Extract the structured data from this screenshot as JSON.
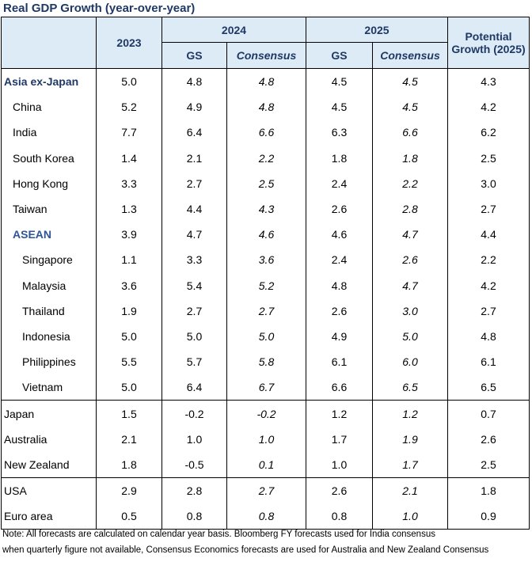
{
  "title": "Real GDP Growth (year-over-year)",
  "headers": {
    "y2023": "2023",
    "y2024": "2024",
    "y2025": "2025",
    "gs": "GS",
    "consensus": "Consensus",
    "potential": "Potential Growth (2025)"
  },
  "rows": [
    {
      "name": "Asia ex-Japan",
      "v2023": "5.0",
      "gs2024": "4.8",
      "c2024": "4.8",
      "gs2025": "4.5",
      "c2025": "4.5",
      "pot": "4.3"
    },
    {
      "name": "China",
      "v2023": "5.2",
      "gs2024": "4.9",
      "c2024": "4.8",
      "gs2025": "4.5",
      "c2025": "4.5",
      "pot": "4.2"
    },
    {
      "name": "India",
      "v2023": "7.7",
      "gs2024": "6.4",
      "c2024": "6.6",
      "gs2025": "6.3",
      "c2025": "6.6",
      "pot": "6.2"
    },
    {
      "name": "South Korea",
      "v2023": "1.4",
      "gs2024": "2.1",
      "c2024": "2.2",
      "gs2025": "1.8",
      "c2025": "1.8",
      "pot": "2.5"
    },
    {
      "name": "Hong Kong",
      "v2023": "3.3",
      "gs2024": "2.7",
      "c2024": "2.5",
      "gs2025": "2.4",
      "c2025": "2.2",
      "pot": "3.0"
    },
    {
      "name": "Taiwan",
      "v2023": "1.3",
      "gs2024": "4.4",
      "c2024": "4.3",
      "gs2025": "2.6",
      "c2025": "2.8",
      "pot": "2.7"
    },
    {
      "name": "ASEAN",
      "v2023": "3.9",
      "gs2024": "4.7",
      "c2024": "4.6",
      "gs2025": "4.6",
      "c2025": "4.7",
      "pot": "4.4"
    },
    {
      "name": "Singapore",
      "v2023": "1.1",
      "gs2024": "3.3",
      "c2024": "3.6",
      "gs2025": "2.4",
      "c2025": "2.6",
      "pot": "2.2"
    },
    {
      "name": "Malaysia",
      "v2023": "3.6",
      "gs2024": "5.4",
      "c2024": "5.2",
      "gs2025": "4.8",
      "c2025": "4.7",
      "pot": "4.2"
    },
    {
      "name": "Thailand",
      "v2023": "1.9",
      "gs2024": "2.7",
      "c2024": "2.7",
      "gs2025": "2.6",
      "c2025": "3.0",
      "pot": "2.7"
    },
    {
      "name": "Indonesia",
      "v2023": "5.0",
      "gs2024": "5.0",
      "c2024": "5.0",
      "gs2025": "4.9",
      "c2025": "5.0",
      "pot": "4.8"
    },
    {
      "name": "Philippines",
      "v2023": "5.5",
      "gs2024": "5.7",
      "c2024": "5.8",
      "gs2025": "6.1",
      "c2025": "6.0",
      "pot": "6.1"
    },
    {
      "name": "Vietnam",
      "v2023": "5.0",
      "gs2024": "6.4",
      "c2024": "6.7",
      "gs2025": "6.6",
      "c2025": "6.5",
      "pot": "6.5"
    },
    {
      "name": "Japan",
      "v2023": "1.5",
      "gs2024": "-0.2",
      "c2024": "-0.2",
      "gs2025": "1.2",
      "c2025": "1.2",
      "pot": "0.7"
    },
    {
      "name": "Australia",
      "v2023": "2.1",
      "gs2024": "1.0",
      "c2024": "1.0",
      "gs2025": "1.7",
      "c2025": "1.9",
      "pot": "2.6"
    },
    {
      "name": "New Zealand",
      "v2023": "1.8",
      "gs2024": "-0.5",
      "c2024": "0.1",
      "gs2025": "1.0",
      "c2025": "1.7",
      "pot": "2.5"
    },
    {
      "name": "USA",
      "v2023": "2.9",
      "gs2024": "2.8",
      "c2024": "2.7",
      "gs2025": "2.6",
      "c2025": "2.1",
      "pot": "1.8"
    },
    {
      "name": "Euro area",
      "v2023": "0.5",
      "gs2024": "0.8",
      "c2024": "0.8",
      "gs2025": "0.8",
      "c2025": "1.0",
      "pot": "0.9"
    }
  ],
  "notes": {
    "line1": "Note: All forecasts are calculated on calendar year basis. Bloomberg FY forecasts used for India consensus",
    "line2": "when quarterly figure not available, Consensus Economics forecasts are used for Australia and New Zealand Consensus"
  }
}
